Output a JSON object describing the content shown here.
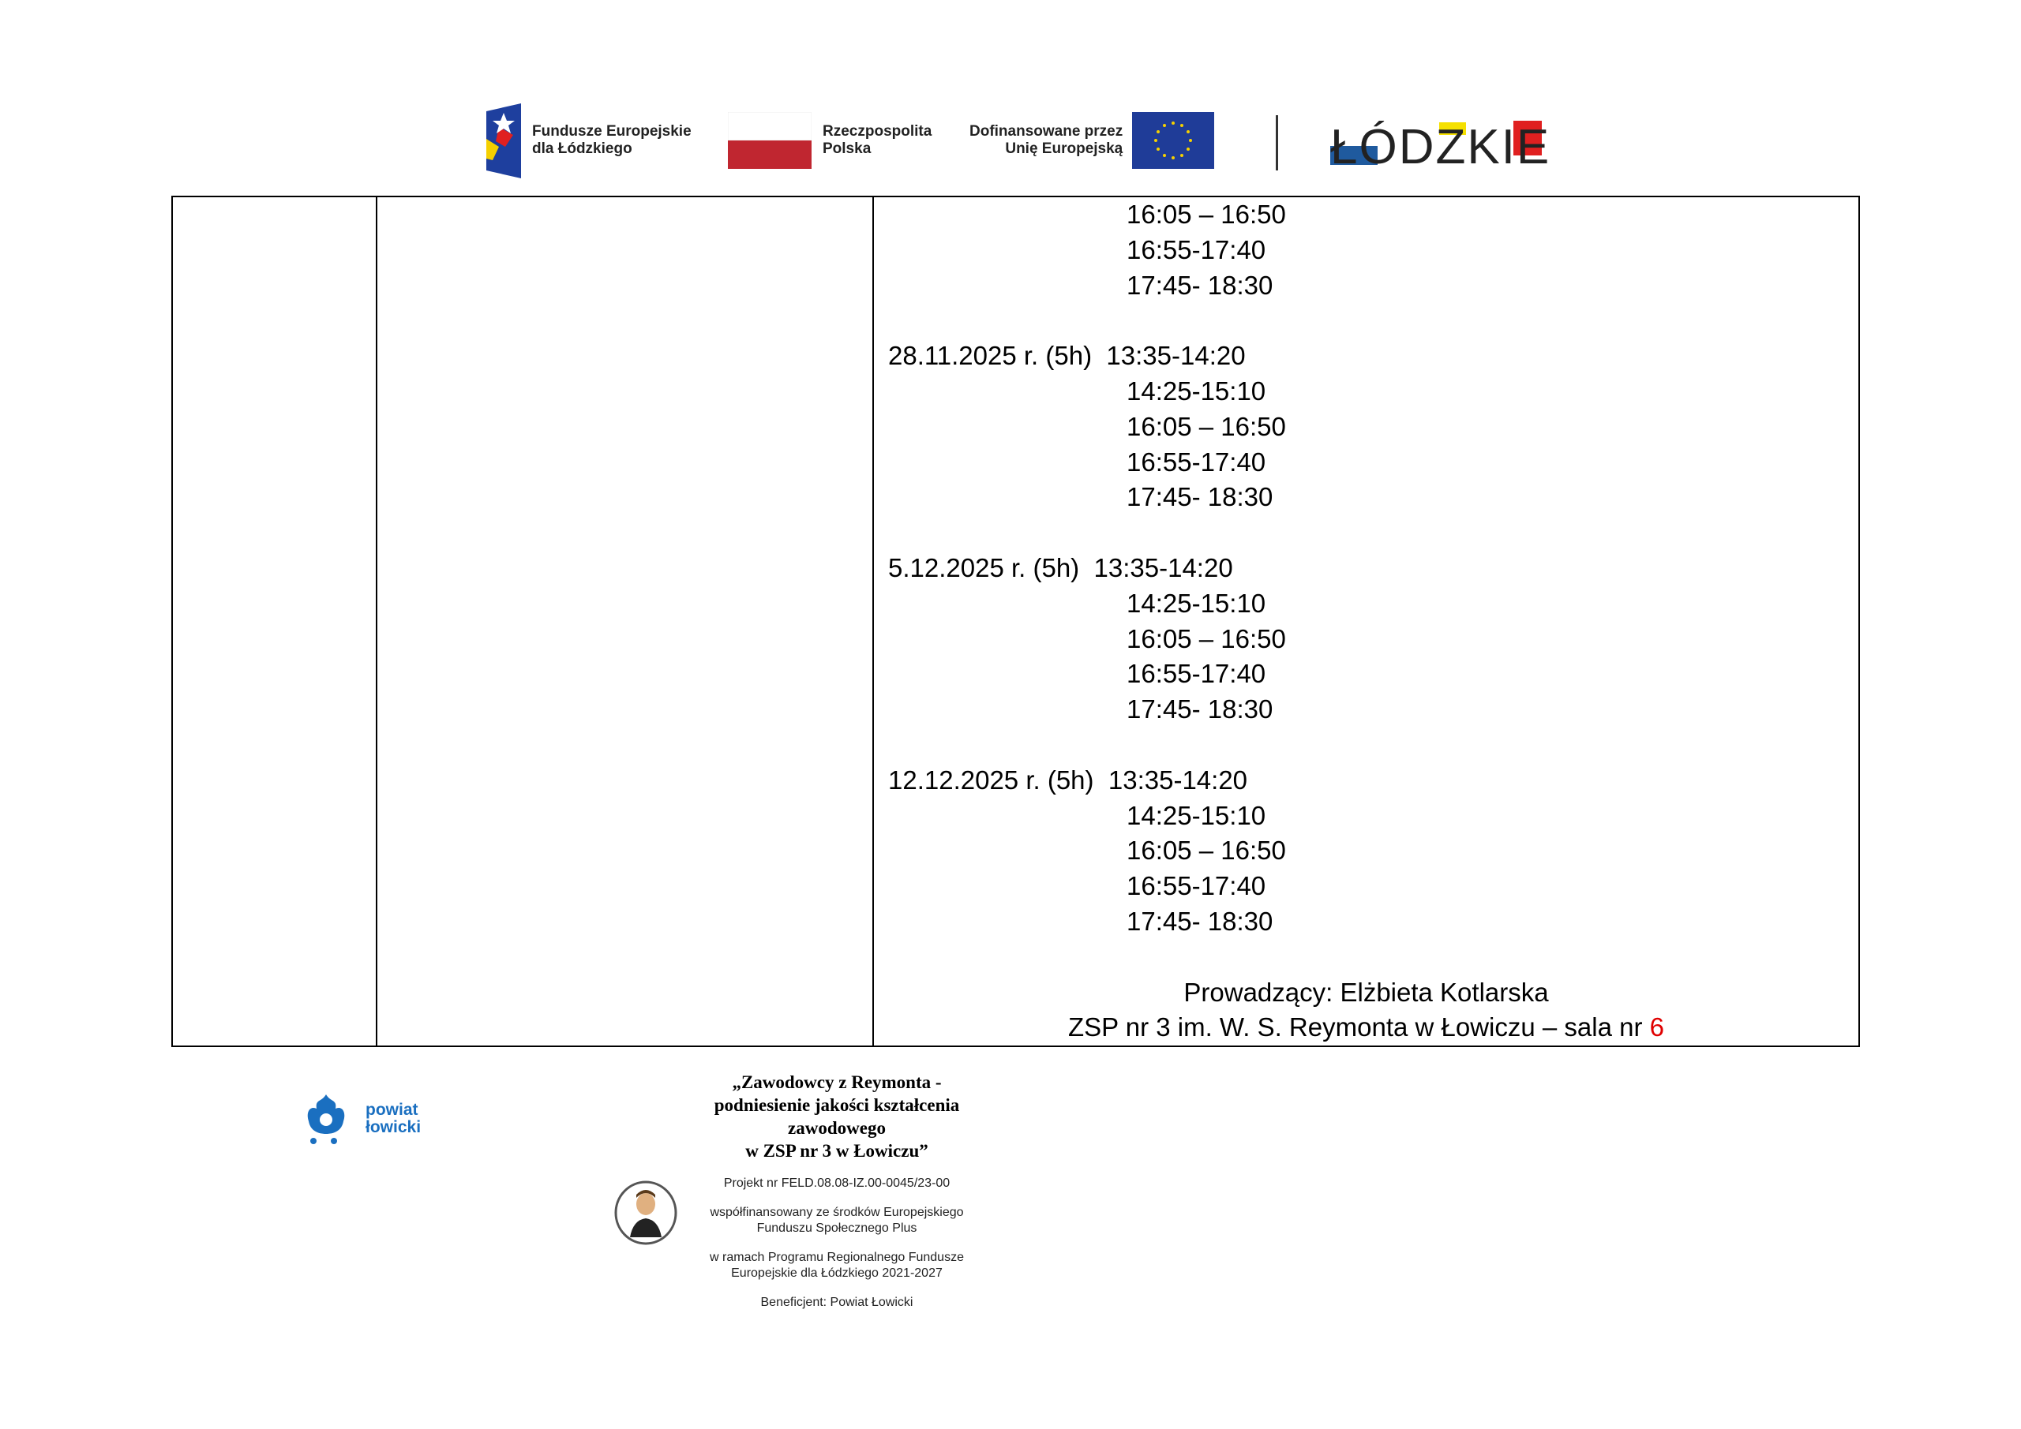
{
  "header_logos": {
    "fe": "Fundusze Europejskie dla Łódzkiego",
    "fe_line1": "Fundusze Europejskie",
    "fe_line2": "dla Łódzkiego",
    "rp_line1": "Rzeczpospolita",
    "rp_line2": "Polska",
    "ue_line1": "Dofinansowane przez",
    "ue_line2": "Unię Europejską",
    "lodzkie": "ŁÓDZKIE"
  },
  "schedule": {
    "first_block_times": [
      "16:05 – 16:50",
      "16:55-17:40",
      "17:45- 18:30"
    ],
    "blocks": [
      {
        "date": "28.11.2025 r. (5h)",
        "first_time": "13:35-14:20",
        "times": [
          "14:25-15:10",
          "16:05 – 16:50",
          "16:55-17:40",
          "17:45- 18:30"
        ]
      },
      {
        "date": "5.12.2025 r. (5h)",
        "first_time": "13:35-14:20",
        "times": [
          "14:25-15:10",
          "16:05 – 16:50",
          "16:55-17:40",
          "17:45- 18:30"
        ]
      },
      {
        "date": "12.12.2025 r. (5h)",
        "first_time": "13:35-14:20",
        "times": [
          "14:25-15:10",
          "16:05 – 16:50",
          "16:55-17:40",
          "17:45- 18:30"
        ]
      }
    ],
    "instructor": "Prowadzący: Elżbieta Kotlarska",
    "location_prefix": "ZSP nr 3 im. W. S. Reymonta w Łowiczu – sala nr ",
    "room": "6",
    "room_color": "#e00000"
  },
  "footer": {
    "powiat_line1": "powiat",
    "powiat_line2": "łowicki",
    "title_lines": [
      "„Zawodowcy z Reymonta -",
      "podniesienie jakości kształcenia",
      "zawodowego",
      "w ZSP nr 3 w Łowiczu”"
    ],
    "project": "Projekt nr FELD.08.08-IZ.00-0045/23-00",
    "cofinanced_1": "współfinansowany ze środków Europejskiego",
    "cofinanced_2": "Funduszu Społecznego Plus",
    "programme_1": "w ramach Programu Regionalnego Fundusze",
    "programme_2": "Europejskie dla Łódzkiego 2021-2027",
    "beneficiary": "Beneficjent: Powiat Łowicki"
  }
}
